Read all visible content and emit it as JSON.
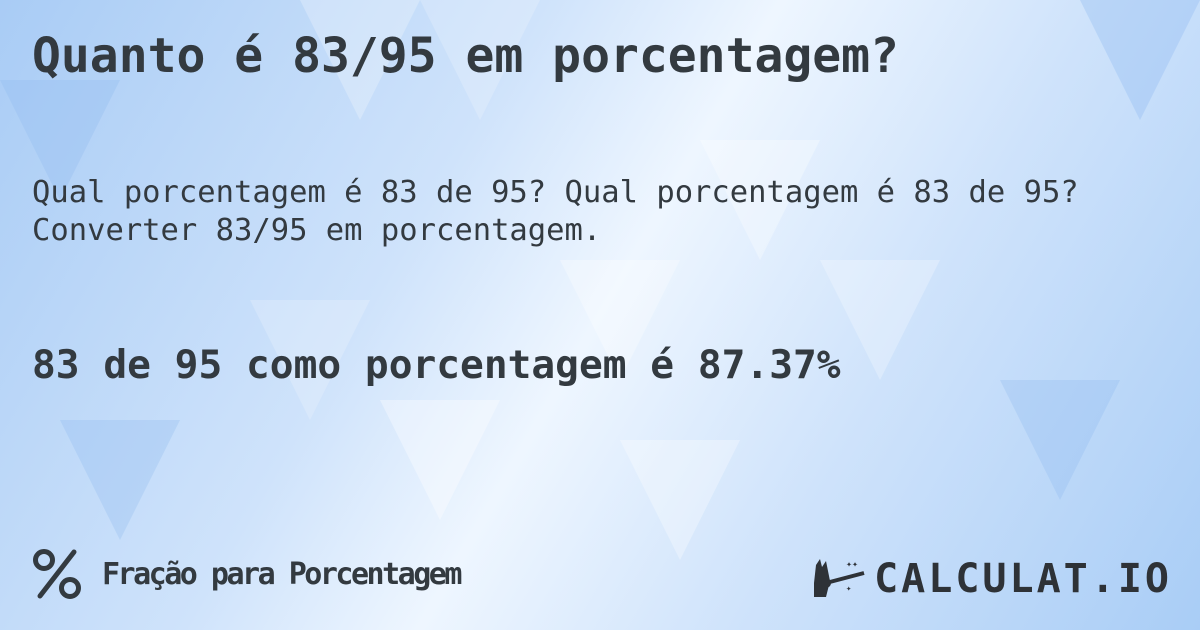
{
  "header": {
    "title": "Quanto é 83/95 em porcentagem?"
  },
  "description": {
    "line1": "Qual porcentagem é 83 de 95? Qual porcentagem é 83 de 95?",
    "line2": "Converter 83/95 em porcentagem."
  },
  "result": {
    "text": "83 de 95 como porcentagem é 87.37%"
  },
  "footer": {
    "icon": "percent-icon",
    "category": "Fração para Porcentagem"
  },
  "brand": {
    "logo_text": "CALCULAT.IO",
    "icon": "magic-hand-icon"
  },
  "colors": {
    "text": "#333a40",
    "background": "#cfe3fb"
  }
}
